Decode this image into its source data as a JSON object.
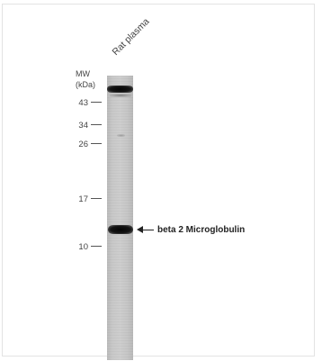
{
  "sample": {
    "lane_label": "Rat plasma"
  },
  "ladder": {
    "header_line1": "MW",
    "header_line2": "(kDa)",
    "markers": [
      "43",
      "34",
      "26",
      "17",
      "10"
    ]
  },
  "annotation": {
    "label": "beta 2 Microglobulin",
    "arrow_icon": "left-arrow-icon"
  },
  "colors": {
    "band": "#111111",
    "lane_background": "#c6c6c6",
    "text": "#333333"
  }
}
